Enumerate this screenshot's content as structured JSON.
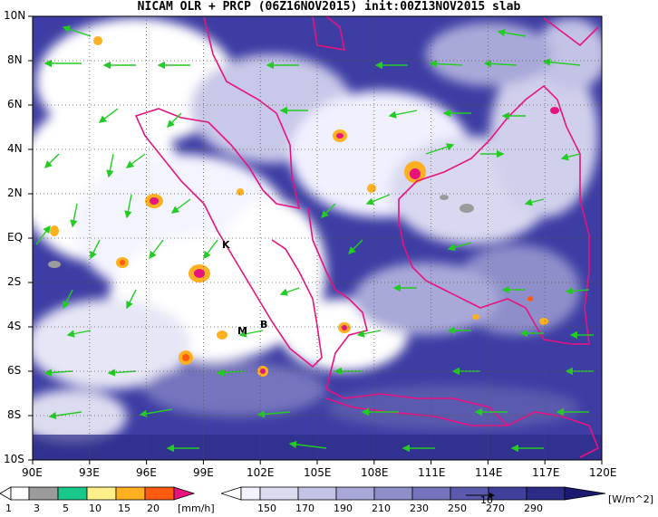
{
  "title": "NICAM OLR + PRCP (06Z16NOV2015) init:00Z13NOV2015 slab",
  "map": {
    "lat_labels": [
      "10N",
      "8N",
      "6N",
      "4N",
      "2N",
      "EQ",
      "2S",
      "4S",
      "6S",
      "8S",
      "10S"
    ],
    "lon_labels": [
      "90E",
      "93E",
      "96E",
      "99E",
      "102E",
      "105E",
      "108E",
      "111E",
      "114E",
      "117E",
      "120E"
    ],
    "markers": [
      "K",
      "M",
      "B"
    ]
  },
  "precip_colorbar": {
    "labels": [
      "1",
      "3",
      "5",
      "10",
      "15",
      "20"
    ],
    "unit": "[mm/h]",
    "colors": [
      "#ffffff",
      "#9b9b9b",
      "#19c98a",
      "#fff08a",
      "#ffb020",
      "#ff5a10",
      "#e8137e"
    ]
  },
  "olr_colorbar": {
    "labels": [
      "150",
      "170",
      "190",
      "210",
      "230",
      "250",
      "270",
      "290"
    ],
    "unit": "[W/m^2]",
    "vector_ref": "10",
    "colors": [
      "#f3f3ff",
      "#dcdcf0",
      "#c3c3e6",
      "#a9a9d9",
      "#8e8ecb",
      "#7474bd",
      "#5a5aae",
      "#40409c",
      "#2c2c88",
      "#1a1a70"
    ]
  }
}
